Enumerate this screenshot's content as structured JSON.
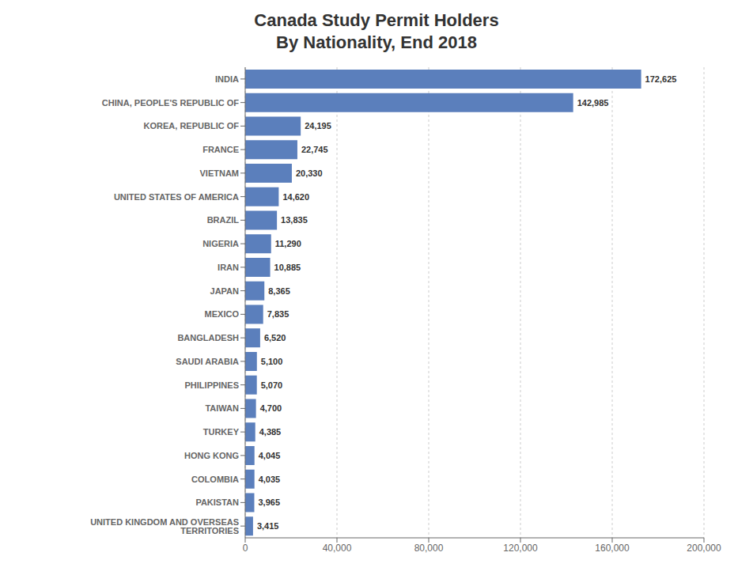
{
  "chart_data": {
    "type": "bar",
    "orientation": "horizontal",
    "title": "Canada Study Permit Holders\nBy Nationality, End 2018",
    "categories": [
      "INDIA",
      "CHINA, PEOPLE'S REPUBLIC OF",
      "KOREA, REPUBLIC OF",
      "FRANCE",
      "VIETNAM",
      "UNITED STATES OF AMERICA",
      "BRAZIL",
      "NIGERIA",
      "IRAN",
      "JAPAN",
      "MEXICO",
      "BANGLADESH",
      "SAUDI ARABIA",
      "PHILIPPINES",
      "TAIWAN",
      "TURKEY",
      "HONG KONG",
      "COLOMBIA",
      "PAKISTAN",
      "UNITED KINGDOM AND OVERSEAS TERRITORIES"
    ],
    "values": [
      172625,
      142985,
      24195,
      22745,
      20330,
      14620,
      13835,
      11290,
      10885,
      8365,
      7835,
      6520,
      5100,
      5070,
      4700,
      4385,
      4045,
      4035,
      3965,
      3415
    ],
    "value_labels": [
      "172,625",
      "142,985",
      "24,195",
      "22,745",
      "20,330",
      "14,620",
      "13,835",
      "11,290",
      "10,885",
      "8,365",
      "7,835",
      "6,520",
      "5,100",
      "5,070",
      "4,700",
      "4,385",
      "4,045",
      "4,035",
      "3,965",
      "3,415"
    ],
    "color": "#5b7fbc",
    "xlim": [
      0,
      200000
    ],
    "xticks": [
      0,
      {
        "value": 40000,
        "label": "40,000"
      },
      {
        "value": 80000,
        "label": "80,000"
      },
      {
        "value": 120000,
        "label": "120,000"
      },
      {
        "value": 160000,
        "label": "160,000"
      },
      {
        "value": 200000,
        "label": "200,000"
      }
    ],
    "grid": true,
    "data_labels": true
  }
}
